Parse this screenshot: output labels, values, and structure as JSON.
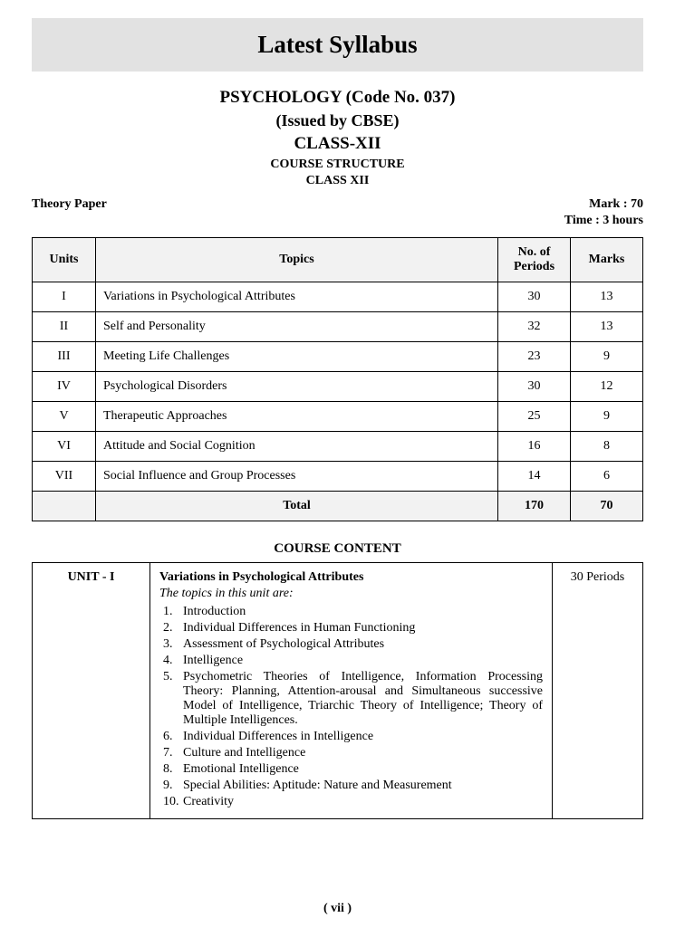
{
  "banner_title": "Latest Syllabus",
  "header": {
    "subject": "PSYCHOLOGY (Code No. 037)",
    "issued": "(Issued by CBSE)",
    "class": "CLASS-XII",
    "course_structure": "COURSE STRUCTURE",
    "class_sub": "CLASS XII"
  },
  "meta": {
    "theory_paper": "Theory Paper",
    "marks": "Mark : 70",
    "time": "Time : 3 hours"
  },
  "syllabus_table": {
    "headers": {
      "units": "Units",
      "topics": "Topics",
      "periods": "No. of Periods",
      "marks": "Marks"
    },
    "rows": [
      {
        "unit": "I",
        "topic": "Variations in Psychological Attributes",
        "periods": "30",
        "marks": "13"
      },
      {
        "unit": "II",
        "topic": "Self and Personality",
        "periods": "32",
        "marks": "13"
      },
      {
        "unit": "III",
        "topic": "Meeting Life Challenges",
        "periods": "23",
        "marks": "9"
      },
      {
        "unit": "IV",
        "topic": "Psychological Disorders",
        "periods": "30",
        "marks": "12"
      },
      {
        "unit": "V",
        "topic": "Therapeutic Approaches",
        "periods": "25",
        "marks": "9"
      },
      {
        "unit": "VI",
        "topic": "Attitude and Social Cognition",
        "periods": "16",
        "marks": "8"
      },
      {
        "unit": "VII",
        "topic": "Social Influence and Group Processes",
        "periods": "14",
        "marks": "6"
      }
    ],
    "total": {
      "label": "Total",
      "periods": "170",
      "marks": "70"
    }
  },
  "course_content": {
    "heading": "COURSE CONTENT",
    "unit_label": "UNIT - I",
    "periods_label": "30 Periods",
    "topic_title": "Variations in Psychological Attributes",
    "topic_intro": "The topics in this unit are:",
    "items": [
      "Introduction",
      "Individual Differences in Human Functioning",
      "Assessment of Psychological Attributes",
      "Intelligence",
      "Psychometric Theories of Intelligence, Information Processing Theory: Planning, Attention-arousal and Simultaneous successive Model of Intelligence, Triarchic Theory of Intelligence; Theory of Multiple Intelligences.",
      "Individual Differences in Intelligence",
      "Culture and Intelligence",
      "Emotional Intelligence",
      "Special Abilities: Aptitude: Nature and Measurement",
      "Creativity"
    ]
  },
  "page_number": "( vii )",
  "colors": {
    "banner_bg": "#e2e2e2",
    "header_bg": "#f2f2f2",
    "border": "#000000",
    "text": "#000000",
    "page_bg": "#ffffff"
  }
}
